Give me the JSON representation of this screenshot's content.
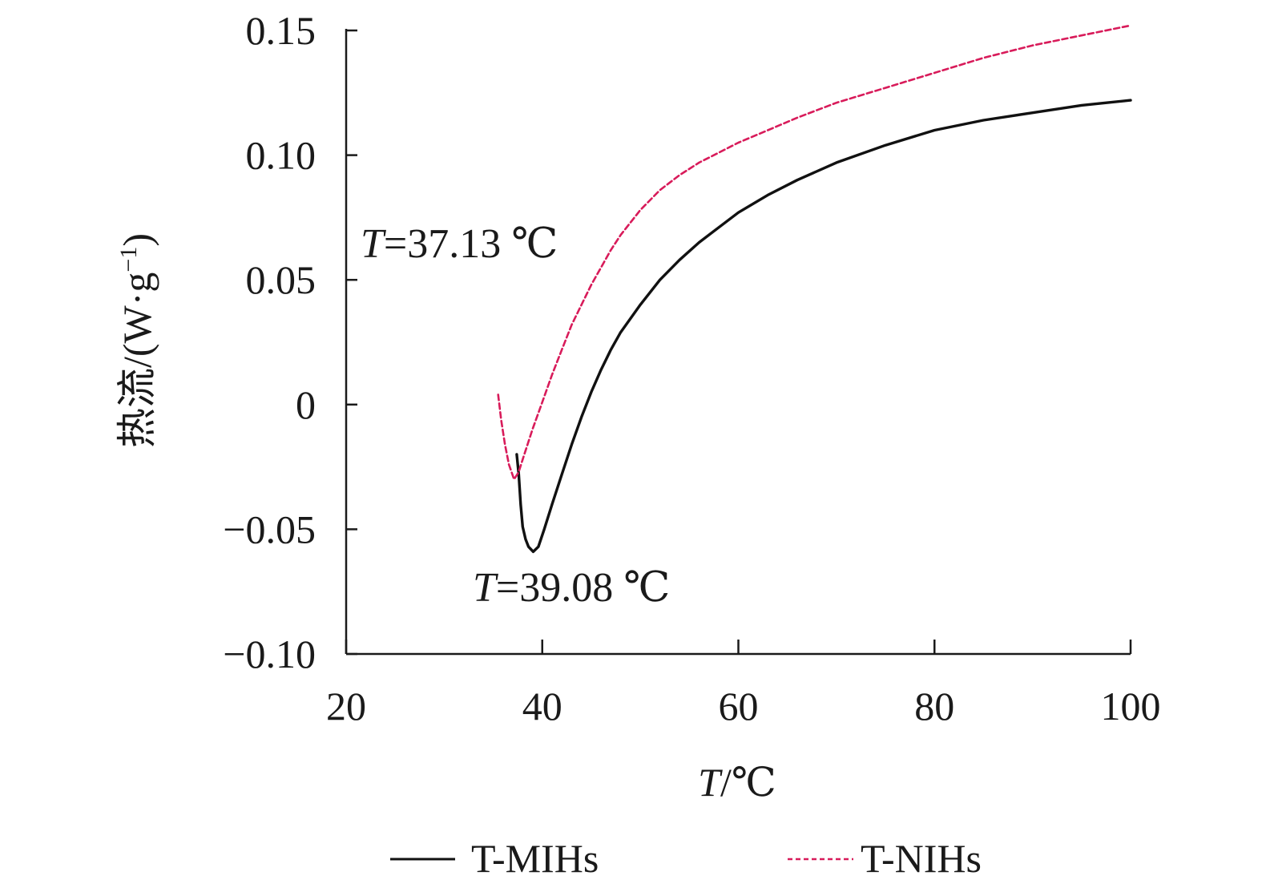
{
  "chart_data": {
    "type": "line",
    "xlabel": {
      "italic": "T",
      "rest": "/℃"
    },
    "ylabel": {
      "text": "热流/(W·g",
      "sup": "−1",
      "close": ")"
    },
    "xlim": [
      20,
      100
    ],
    "ylim": [
      -0.1,
      0.15
    ],
    "xticks": [
      20,
      40,
      60,
      80,
      100
    ],
    "xtick_labels": [
      "20",
      "40",
      "60",
      "80",
      "100"
    ],
    "yticks": [
      -0.1,
      -0.05,
      0,
      0.05,
      0.1,
      0.15
    ],
    "ytick_labels": [
      "−0.10",
      "−0.05",
      "0",
      "0.05",
      "0.10",
      "0.15"
    ],
    "grid": false,
    "legend_position": "bottom",
    "series": [
      {
        "name": "T-MIHs",
        "color": "#111111",
        "style": "solid",
        "points": [
          [
            37.4,
            -0.02
          ],
          [
            37.6,
            -0.028
          ],
          [
            37.8,
            -0.04
          ],
          [
            38.0,
            -0.049
          ],
          [
            38.3,
            -0.054
          ],
          [
            38.6,
            -0.057
          ],
          [
            39.08,
            -0.059
          ],
          [
            39.6,
            -0.057
          ],
          [
            40.2,
            -0.05
          ],
          [
            41.0,
            -0.04
          ],
          [
            42.0,
            -0.028
          ],
          [
            43.0,
            -0.016
          ],
          [
            44.0,
            -0.005
          ],
          [
            45.0,
            0.005
          ],
          [
            46.0,
            0.014
          ],
          [
            47.0,
            0.022
          ],
          [
            48.0,
            0.029
          ],
          [
            50.0,
            0.04
          ],
          [
            52.0,
            0.05
          ],
          [
            54.0,
            0.058
          ],
          [
            56.0,
            0.065
          ],
          [
            58.0,
            0.071
          ],
          [
            60.0,
            0.077
          ],
          [
            63.0,
            0.084
          ],
          [
            66.0,
            0.09
          ],
          [
            70.0,
            0.097
          ],
          [
            75.0,
            0.104
          ],
          [
            80.0,
            0.11
          ],
          [
            85.0,
            0.114
          ],
          [
            90.0,
            0.117
          ],
          [
            95.0,
            0.12
          ],
          [
            100.0,
            0.122
          ]
        ]
      },
      {
        "name": "T-NIHs",
        "color": "#d81b5a",
        "style": "dashed",
        "points": [
          [
            35.5,
            0.004
          ],
          [
            35.8,
            -0.006
          ],
          [
            36.2,
            -0.016
          ],
          [
            36.6,
            -0.024
          ],
          [
            37.13,
            -0.03
          ],
          [
            37.6,
            -0.027
          ],
          [
            38.0,
            -0.022
          ],
          [
            39.0,
            -0.01
          ],
          [
            40.0,
            0.001
          ],
          [
            41.0,
            0.012
          ],
          [
            42.0,
            0.022
          ],
          [
            43.0,
            0.032
          ],
          [
            44.0,
            0.04
          ],
          [
            45.0,
            0.048
          ],
          [
            46.0,
            0.055
          ],
          [
            47.0,
            0.062
          ],
          [
            48.0,
            0.068
          ],
          [
            50.0,
            0.078
          ],
          [
            52.0,
            0.086
          ],
          [
            54.0,
            0.092
          ],
          [
            56.0,
            0.097
          ],
          [
            58.0,
            0.101
          ],
          [
            60.0,
            0.105
          ],
          [
            63.0,
            0.11
          ],
          [
            66.0,
            0.115
          ],
          [
            70.0,
            0.121
          ],
          [
            75.0,
            0.127
          ],
          [
            80.0,
            0.133
          ],
          [
            85.0,
            0.139
          ],
          [
            90.0,
            0.144
          ],
          [
            95.0,
            0.148
          ],
          [
            100.0,
            0.152
          ]
        ]
      }
    ],
    "annotations": [
      {
        "series": "T-NIHs",
        "italic": "T",
        "rest": "=37.13 ℃"
      },
      {
        "series": "T-MIHs",
        "italic": "T",
        "rest": "=39.08 ℃"
      }
    ]
  }
}
